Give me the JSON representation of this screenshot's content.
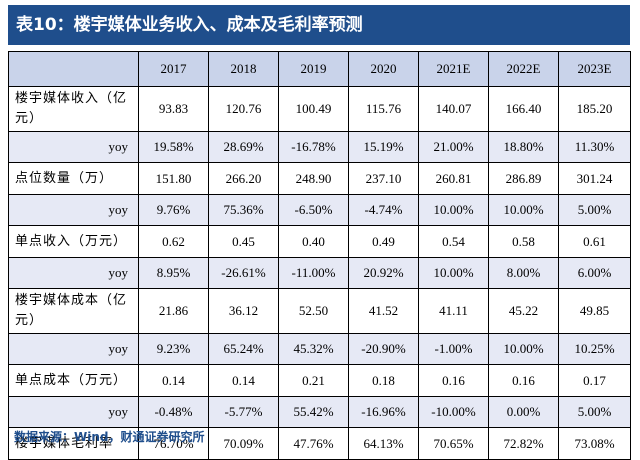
{
  "title": "表10：楼宇媒体业务收入、成本及毛利率预测",
  "columns": [
    "2017",
    "2018",
    "2019",
    "2020",
    "2021E",
    "2022E",
    "2023E"
  ],
  "rows": [
    {
      "label": "楼宇媒体收入（亿元）",
      "type": "val",
      "tall": true,
      "values": [
        "93.83",
        "120.76",
        "100.49",
        "115.76",
        "140.07",
        "166.40",
        "185.20"
      ]
    },
    {
      "label": "yoy",
      "type": "yoy",
      "values": [
        "19.58%",
        "28.69%",
        "-16.78%",
        "15.19%",
        "21.00%",
        "18.80%",
        "11.30%"
      ]
    },
    {
      "label": "点位数量（万）",
      "type": "val",
      "values": [
        "151.80",
        "266.20",
        "248.90",
        "237.10",
        "260.81",
        "286.89",
        "301.24"
      ]
    },
    {
      "label": "yoy",
      "type": "yoy",
      "values": [
        "9.76%",
        "75.36%",
        "-6.50%",
        "-4.74%",
        "10.00%",
        "10.00%",
        "5.00%"
      ]
    },
    {
      "label": "单点收入（万元）",
      "type": "val",
      "values": [
        "0.62",
        "0.45",
        "0.40",
        "0.49",
        "0.54",
        "0.58",
        "0.61"
      ]
    },
    {
      "label": "yoy",
      "type": "yoy",
      "values": [
        "8.95%",
        "-26.61%",
        "-11.00%",
        "20.92%",
        "10.00%",
        "8.00%",
        "6.00%"
      ]
    },
    {
      "label": "楼宇媒体成本（亿元）",
      "type": "val",
      "tall": true,
      "values": [
        "21.86",
        "36.12",
        "52.50",
        "41.52",
        "41.11",
        "45.22",
        "49.85"
      ]
    },
    {
      "label": "yoy",
      "type": "yoy",
      "values": [
        "9.23%",
        "65.24%",
        "45.32%",
        "-20.90%",
        "-1.00%",
        "10.00%",
        "10.25%"
      ]
    },
    {
      "label": "单点成本（万元）",
      "type": "val",
      "values": [
        "0.14",
        "0.14",
        "0.21",
        "0.18",
        "0.16",
        "0.16",
        "0.17"
      ]
    },
    {
      "label": "yoy",
      "type": "yoy",
      "values": [
        "-0.48%",
        "-5.77%",
        "55.42%",
        "-16.96%",
        "-10.00%",
        "0.00%",
        "5.00%"
      ]
    },
    {
      "label": "楼宇媒体毛利率",
      "type": "val",
      "values": [
        "76.70%",
        "70.09%",
        "47.76%",
        "64.13%",
        "70.65%",
        "72.82%",
        "73.08%"
      ]
    }
  ],
  "source": "数据来源：Wind，财通证券研究所"
}
